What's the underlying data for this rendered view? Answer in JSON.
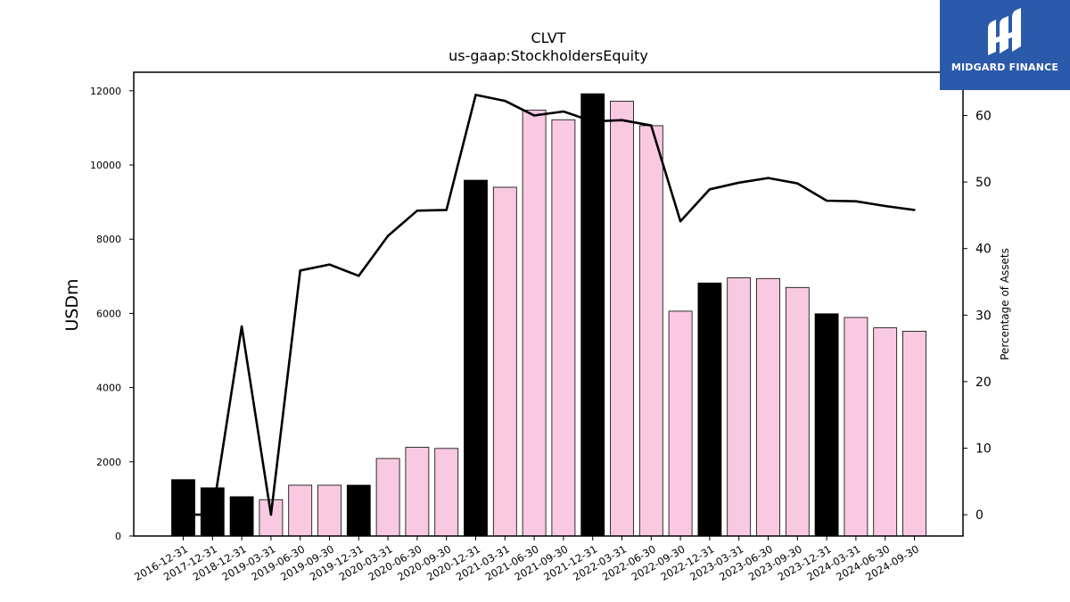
{
  "chart_data": {
    "type": "bar",
    "title": "CLVT",
    "subtitle": "us-gaap:StockholdersEquity",
    "ylabel": "USDm",
    "y2label": "Percentage of Assets",
    "ylim": [
      0,
      12500
    ],
    "y2lim": [
      -3.2,
      66.5
    ],
    "yticks": [
      0,
      2000,
      4000,
      6000,
      8000,
      10000,
      12000
    ],
    "y2ticks": [
      0,
      10,
      20,
      30,
      40,
      50,
      60
    ],
    "categories": [
      "2016-12-31",
      "2017-12-31",
      "2018-12-31",
      "2019-03-31",
      "2019-06-30",
      "2019-09-30",
      "2019-12-31",
      "2020-03-31",
      "2020-06-30",
      "2020-09-30",
      "2020-12-31",
      "2021-03-31",
      "2021-06-30",
      "2021-09-30",
      "2021-12-31",
      "2022-03-31",
      "2022-06-30",
      "2022-09-30",
      "2022-12-31",
      "2023-03-31",
      "2023-06-30",
      "2023-09-30",
      "2023-12-31",
      "2024-03-31",
      "2024-06-30",
      "2024-09-30"
    ],
    "series": [
      {
        "kind": "bar",
        "values": [
          1520,
          1300,
          1060,
          980,
          1370,
          1370,
          1370,
          2090,
          2390,
          2360,
          9590,
          9400,
          11480,
          11220,
          11920,
          11720,
          11060,
          6060,
          6820,
          6960,
          6940,
          6700,
          5990,
          5890,
          5610,
          5520
        ],
        "annual": [
          true,
          true,
          true,
          false,
          false,
          false,
          true,
          false,
          false,
          false,
          true,
          false,
          false,
          false,
          true,
          false,
          false,
          false,
          true,
          false,
          false,
          false,
          true,
          false,
          false,
          false
        ]
      },
      {
        "kind": "line",
        "axis": "right",
        "values": [
          0.0,
          0.0,
          28.3,
          0.0,
          36.7,
          37.6,
          35.9,
          41.9,
          45.7,
          45.8,
          63.1,
          62.2,
          60.0,
          60.6,
          59.1,
          59.3,
          58.5,
          44.1,
          48.9,
          49.9,
          50.6,
          49.8,
          47.2,
          47.1,
          46.4,
          45.8
        ]
      }
    ],
    "colors": {
      "annual_bar": "#000000",
      "quarter_bar": "#f9c9e2",
      "bar_edge": "#000000",
      "line": "#000000"
    },
    "grid": false
  },
  "logo": {
    "text": "MIDGARD FINANCE",
    "background": "#2b5aab"
  }
}
